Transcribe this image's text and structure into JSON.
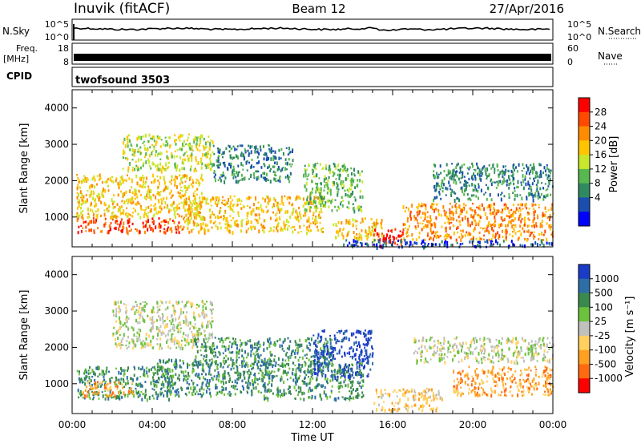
{
  "header": {
    "station": "Inuvik (fitACF)",
    "beam": "Beam 12",
    "date": "27/Apr/2016"
  },
  "sky_panel": {
    "left_label": "N.Sky",
    "left_top": "10^5",
    "left_bottom": "10^0",
    "right_top": "10^5",
    "right_bottom": "10^0",
    "right_label": "N.Search"
  },
  "freq_panel": {
    "left_label_1": "Freq.",
    "left_label_2": "[MHz]",
    "left_top": "18",
    "left_bottom": "8",
    "right_top": "60",
    "right_bottom": "0",
    "right_label": "Nave"
  },
  "cpid": {
    "label": "CPID",
    "value": "twofsound 3503"
  },
  "chart_data": [
    {
      "type": "heatmap",
      "name": "power",
      "ylabel": "Slant Range [km]",
      "yticks": [
        1000,
        2000,
        3000,
        4000
      ],
      "ylim": [
        180,
        4500
      ],
      "xlim": [
        0,
        24
      ],
      "colorbar": {
        "label": "Power [dB]",
        "ticks": [
          "28",
          "24",
          "20",
          "16",
          "12",
          "8",
          "4"
        ],
        "colors": [
          "#ff0000",
          "#ff4a00",
          "#ff8c00",
          "#ffc400",
          "#c8e62c",
          "#56b84e",
          "#2f8a62",
          "#1a4fb0",
          "#0000ff"
        ]
      },
      "regions": [
        {
          "t0": 0.2,
          "t1": 5.5,
          "r0": 600,
          "r1": 1000,
          "c": 1
        },
        {
          "t0": 0.2,
          "t1": 6.5,
          "r0": 1000,
          "r1": 2200,
          "c": 3
        },
        {
          "t0": 2.5,
          "t1": 7.0,
          "r0": 2300,
          "r1": 3300,
          "c": 4
        },
        {
          "t0": 5.5,
          "t1": 12.5,
          "r0": 600,
          "r1": 1600,
          "c": 3
        },
        {
          "t0": 7.0,
          "t1": 11.0,
          "r0": 2000,
          "r1": 3000,
          "c": 6
        },
        {
          "t0": 11.5,
          "t1": 14.5,
          "r0": 1200,
          "r1": 2500,
          "c": 5
        },
        {
          "t0": 13.0,
          "t1": 15.5,
          "r0": 400,
          "r1": 1000,
          "c": 3
        },
        {
          "t0": 15.0,
          "t1": 16.5,
          "r0": 200,
          "r1": 700,
          "c": 0
        },
        {
          "t0": 16.5,
          "t1": 24.0,
          "r0": 400,
          "r1": 1400,
          "c": 2
        },
        {
          "t0": 18.0,
          "t1": 24.0,
          "r0": 1500,
          "r1": 2500,
          "c": 6
        },
        {
          "t0": 13.5,
          "t1": 24.0,
          "r0": 200,
          "r1": 400,
          "c": 7
        }
      ]
    },
    {
      "type": "heatmap",
      "name": "velocity",
      "xlabel": "Time UT",
      "ylabel": "Slant Range [km]",
      "yticks": [
        1000,
        2000,
        3000,
        4000
      ],
      "ylim": [
        180,
        4500
      ],
      "xlim": [
        0,
        24
      ],
      "xticks": [
        "00:00",
        "04:00",
        "08:00",
        "12:00",
        "16:00",
        "20:00",
        "00:00"
      ],
      "colorbar": {
        "label": "Velocity [m s⁻¹]",
        "ticks": [
          "1000",
          "500",
          "100",
          "25",
          "-25",
          "-100",
          "-500",
          "-1000"
        ],
        "colors": [
          "#1a3cc8",
          "#2e6ea6",
          "#3a8a4e",
          "#6cc23c",
          "#c0c0bc",
          "#ffd060",
          "#ffa020",
          "#ff6a10",
          "#ff0000"
        ]
      },
      "regions": [
        {
          "t0": 2.0,
          "t1": 7.0,
          "r0": 2000,
          "r1": 3300,
          "c": 4
        },
        {
          "t0": 0.2,
          "t1": 5.0,
          "r0": 600,
          "r1": 1500,
          "c": 2
        },
        {
          "t0": 4.0,
          "t1": 10.0,
          "r0": 700,
          "r1": 1700,
          "c": 2
        },
        {
          "t0": 6.0,
          "t1": 13.0,
          "r0": 1500,
          "r1": 2300,
          "c": 2
        },
        {
          "t0": 9.5,
          "t1": 14.5,
          "r0": 600,
          "r1": 1600,
          "c": 2
        },
        {
          "t0": 12.0,
          "t1": 15.0,
          "r0": 1200,
          "r1": 2500,
          "c": 0
        },
        {
          "t0": 15.0,
          "t1": 18.5,
          "r0": 300,
          "r1": 900,
          "c": 5
        },
        {
          "t0": 19.0,
          "t1": 24.0,
          "r0": 700,
          "r1": 1500,
          "c": 6
        },
        {
          "t0": 17.0,
          "t1": 24.0,
          "r0": 1600,
          "r1": 2300,
          "c": 4
        },
        {
          "t0": 0.5,
          "t1": 3.0,
          "r0": 700,
          "r1": 1100,
          "c": 6
        }
      ]
    }
  ]
}
